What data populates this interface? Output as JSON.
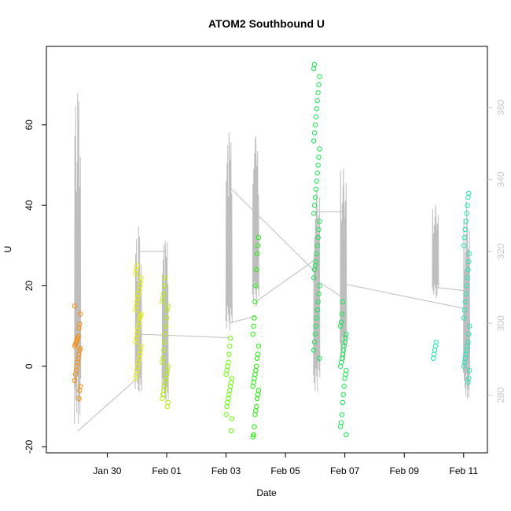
{
  "chart_data": {
    "type": "scatter",
    "title": "ATOM2 Southbound U",
    "xlabel": "Date",
    "ylabel": "U",
    "x_ticks": [
      "Jan 30",
      "Feb 01",
      "Feb 03",
      "Feb 05",
      "Feb 07",
      "Feb 09",
      "Feb 11"
    ],
    "y_ticks": [
      -20,
      0,
      20,
      40,
      60
    ],
    "y2_ticks": [
      280,
      300,
      320,
      340,
      360
    ],
    "xlim": [
      -2.05,
      12.8
    ],
    "ylim": [
      -21.5,
      79.5
    ],
    "y2lim": [
      264.0,
      377.0
    ],
    "grid": false,
    "colors": {
      "orange": "#ff8c00",
      "yellow": "#e6f500",
      "yellow_green": "#b4f000",
      "lime": "#64ff00",
      "bright_green": "#1cf000",
      "green": "#14e650",
      "cyan": "#1ee6b4",
      "line": "#bebebe",
      "right_axis": "#c8c8c8"
    },
    "series": [
      {
        "day": -1.0,
        "color": "orange",
        "values": [
          15,
          13,
          10.5,
          9.5,
          7.5,
          7,
          6.5,
          6,
          5.5,
          5,
          4.5,
          4,
          3,
          2,
          1,
          0,
          -1,
          -2,
          -3.5,
          -5,
          -6,
          -8
        ]
      },
      {
        "day": 1.05,
        "color": "yellow",
        "values": [
          25,
          24,
          23,
          22,
          21,
          20,
          19,
          18,
          17,
          16,
          15,
          14,
          13,
          12.5,
          12,
          11,
          10,
          9,
          8,
          7,
          6,
          5,
          4,
          3,
          2,
          1,
          0,
          -1,
          -2,
          -3
        ]
      },
      {
        "day": 1.95,
        "color": "yellow_green",
        "values": [
          22,
          20,
          18,
          17,
          16,
          15,
          14,
          12,
          10,
          8,
          6,
          4,
          2,
          1,
          0,
          -1,
          -2,
          -3,
          -4,
          -5,
          -6,
          -7,
          -8,
          -9,
          -10
        ]
      },
      {
        "day": 4.1,
        "color": "lime",
        "values": [
          7,
          5,
          3,
          1,
          0,
          -1,
          -2,
          -3,
          -4,
          -5,
          -6,
          -7,
          -8,
          -9,
          -10,
          -12,
          -13,
          -16
        ]
      },
      {
        "day": 5.0,
        "color": "bright_green",
        "values": [
          32,
          30,
          28,
          24,
          20,
          16,
          12,
          10,
          8,
          5,
          3,
          2,
          0,
          -1,
          -2,
          -3,
          -4,
          -5,
          -6,
          -7,
          -8,
          -10,
          -11,
          -12,
          -15,
          -17,
          -17.5
        ]
      },
      {
        "day": 7.05,
        "color": "green",
        "values": [
          75,
          74,
          72,
          70,
          68,
          66,
          64,
          62,
          60,
          58,
          56,
          54,
          52,
          50,
          48,
          46,
          44,
          42,
          40,
          38,
          36,
          34,
          32,
          30,
          28,
          26,
          25,
          24,
          22,
          20,
          18,
          16,
          14,
          12,
          10,
          8,
          6,
          4,
          2
        ]
      },
      {
        "day": 7.95,
        "color": "green",
        "values": [
          16,
          13,
          11,
          10,
          8,
          7,
          6,
          5,
          4,
          3,
          2,
          1,
          0,
          -1,
          -2,
          -3,
          -5,
          -7,
          -9,
          -12,
          -14,
          -15,
          -17
        ]
      },
      {
        "day": 11.05,
        "color": "cyan",
        "values": [
          6,
          5,
          4,
          3,
          2
        ]
      },
      {
        "day": 12.1,
        "color": "cyan",
        "values": [
          43,
          42,
          40,
          38,
          36,
          34,
          32,
          30,
          28,
          26,
          24,
          22,
          20,
          18,
          16,
          14,
          12,
          10,
          8,
          6,
          5,
          4,
          3,
          2,
          1,
          0,
          -1,
          -3,
          -4
        ]
      }
    ],
    "right_axis_series": {
      "name": "",
      "color": "line",
      "spikes": [
        {
          "day": -1.0,
          "low": 272,
          "high": 364
        },
        {
          "day": 1.05,
          "low": 281,
          "high": 327
        },
        {
          "day": 1.95,
          "low": 278,
          "high": 323
        },
        {
          "day": 4.1,
          "low": 298,
          "high": 353
        },
        {
          "day": 5.0,
          "low": 305,
          "high": 352
        },
        {
          "day": 7.05,
          "low": 281,
          "high": 337
        },
        {
          "day": 7.95,
          "low": 289,
          "high": 343
        },
        {
          "day": 11.05,
          "low": 307,
          "high": 333
        },
        {
          "day": 12.1,
          "low": 279,
          "high": 334
        }
      ],
      "connectors": [
        {
          "x": [
            -1.0,
            1.05
          ],
          "y": [
            270,
            285
          ]
        },
        {
          "x": [
            1.05,
            1.95
          ],
          "y": [
            320,
            320
          ]
        },
        {
          "x": [
            1.05,
            4.1
          ],
          "y": [
            297,
            296
          ]
        },
        {
          "x": [
            4.1,
            5.0
          ],
          "y": [
            300,
            302
          ]
        },
        {
          "x": [
            4.1,
            7.05
          ],
          "y": [
            338,
            314
          ]
        },
        {
          "x": [
            5.0,
            7.05
          ],
          "y": [
            306,
            318
          ]
        },
        {
          "x": [
            7.05,
            7.95
          ],
          "y": [
            312,
            307
          ]
        },
        {
          "x": [
            7.05,
            7.95
          ],
          "y": [
            331,
            331
          ]
        },
        {
          "x": [
            7.95,
            12.1
          ],
          "y": [
            311,
            304
          ]
        },
        {
          "x": [
            11.05,
            12.1
          ],
          "y": [
            310,
            309
          ]
        }
      ]
    }
  }
}
